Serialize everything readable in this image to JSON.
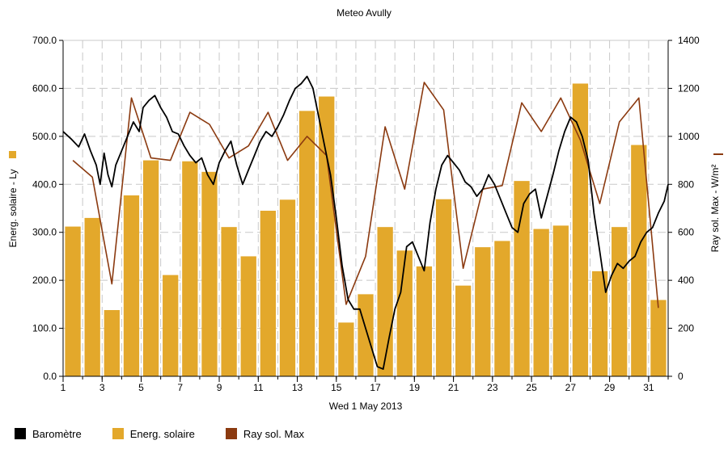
{
  "chart_data": {
    "type": "bar+line",
    "title": "Meteo  Avully",
    "xlabel": "Wed 1 May 2013",
    "ylabel_left": "Energ. solaire - Ly",
    "ylabel_right": "Ray sol. Max - W/m²",
    "ylim_left": [
      0,
      700
    ],
    "ylim_right": [
      0,
      1400
    ],
    "xlim": [
      1,
      32
    ],
    "y_ticks_left": [
      "0.0",
      "100.0",
      "200.0",
      "300.0",
      "400.0",
      "500.0",
      "600.0",
      "700.0"
    ],
    "y_ticks_right": [
      "0",
      "200",
      "400",
      "600",
      "800",
      "1000",
      "1200",
      "1400"
    ],
    "x_ticks": [
      "1",
      "3",
      "5",
      "7",
      "9",
      "11",
      "13",
      "15",
      "17",
      "19",
      "21",
      "23",
      "25",
      "27",
      "29",
      "31"
    ],
    "grid": true,
    "legend_position": "bottom",
    "series": [
      {
        "name": "Baromètre",
        "kind": "line",
        "axis": "left",
        "color": "#000000",
        "points": [
          [
            1.0,
            510
          ],
          [
            1.4,
            495
          ],
          [
            1.8,
            478
          ],
          [
            2.1,
            505
          ],
          [
            2.4,
            470
          ],
          [
            2.7,
            440
          ],
          [
            2.9,
            400
          ],
          [
            3.1,
            465
          ],
          [
            3.3,
            420
          ],
          [
            3.5,
            395
          ],
          [
            3.7,
            440
          ],
          [
            4.0,
            470
          ],
          [
            4.3,
            500
          ],
          [
            4.6,
            530
          ],
          [
            4.9,
            510
          ],
          [
            5.1,
            560
          ],
          [
            5.4,
            575
          ],
          [
            5.7,
            585
          ],
          [
            6.0,
            560
          ],
          [
            6.3,
            540
          ],
          [
            6.6,
            510
          ],
          [
            6.9,
            505
          ],
          [
            7.2,
            480
          ],
          [
            7.5,
            460
          ],
          [
            7.8,
            445
          ],
          [
            8.1,
            455
          ],
          [
            8.4,
            420
          ],
          [
            8.7,
            400
          ],
          [
            9.0,
            445
          ],
          [
            9.3,
            470
          ],
          [
            9.6,
            490
          ],
          [
            9.9,
            440
          ],
          [
            10.2,
            400
          ],
          [
            10.5,
            430
          ],
          [
            10.8,
            460
          ],
          [
            11.1,
            490
          ],
          [
            11.4,
            510
          ],
          [
            11.7,
            500
          ],
          [
            12.0,
            520
          ],
          [
            12.3,
            545
          ],
          [
            12.6,
            575
          ],
          [
            12.9,
            600
          ],
          [
            13.2,
            610
          ],
          [
            13.5,
            625
          ],
          [
            13.8,
            600
          ],
          [
            14.1,
            540
          ],
          [
            14.4,
            480
          ],
          [
            14.7,
            420
          ],
          [
            15.0,
            330
          ],
          [
            15.3,
            230
          ],
          [
            15.6,
            160
          ],
          [
            15.9,
            140
          ],
          [
            16.2,
            140
          ],
          [
            16.5,
            100
          ],
          [
            16.8,
            60
          ],
          [
            17.1,
            20
          ],
          [
            17.4,
            15
          ],
          [
            17.7,
            80
          ],
          [
            18.0,
            140
          ],
          [
            18.3,
            175
          ],
          [
            18.6,
            270
          ],
          [
            18.9,
            280
          ],
          [
            19.2,
            250
          ],
          [
            19.5,
            220
          ],
          [
            19.8,
            320
          ],
          [
            20.1,
            390
          ],
          [
            20.4,
            440
          ],
          [
            20.7,
            460
          ],
          [
            21.0,
            445
          ],
          [
            21.3,
            430
          ],
          [
            21.6,
            405
          ],
          [
            21.9,
            395
          ],
          [
            22.2,
            375
          ],
          [
            22.5,
            390
          ],
          [
            22.8,
            420
          ],
          [
            23.1,
            400
          ],
          [
            23.4,
            370
          ],
          [
            23.7,
            340
          ],
          [
            24.0,
            310
          ],
          [
            24.3,
            300
          ],
          [
            24.6,
            360
          ],
          [
            24.9,
            380
          ],
          [
            25.2,
            390
          ],
          [
            25.5,
            330
          ],
          [
            25.8,
            375
          ],
          [
            26.1,
            420
          ],
          [
            26.4,
            470
          ],
          [
            26.7,
            510
          ],
          [
            27.0,
            540
          ],
          [
            27.3,
            530
          ],
          [
            27.6,
            500
          ],
          [
            27.9,
            450
          ],
          [
            28.2,
            340
          ],
          [
            28.5,
            260
          ],
          [
            28.8,
            175
          ],
          [
            29.1,
            210
          ],
          [
            29.4,
            235
          ],
          [
            29.7,
            225
          ],
          [
            30.0,
            240
          ],
          [
            30.3,
            250
          ],
          [
            30.6,
            280
          ],
          [
            30.9,
            300
          ],
          [
            31.2,
            310
          ],
          [
            31.5,
            340
          ],
          [
            31.8,
            365
          ],
          [
            32.0,
            400
          ]
        ]
      },
      {
        "name": "Energ. solaire",
        "kind": "bar",
        "axis": "left",
        "color": "#E3A82B",
        "x": [
          1,
          2,
          3,
          4,
          5,
          6,
          7,
          8,
          9,
          10,
          11,
          12,
          13,
          14,
          15,
          16,
          17,
          18,
          19,
          20,
          21,
          22,
          23,
          24,
          25,
          26,
          27,
          28,
          29,
          30,
          31
        ],
        "values": [
          312,
          330,
          138,
          377,
          450,
          211,
          448,
          426,
          311,
          250,
          345,
          368,
          553,
          583,
          112,
          171,
          311,
          262,
          229,
          369,
          189,
          269,
          282,
          407,
          307,
          314,
          610,
          219,
          311,
          482,
          159
        ]
      },
      {
        "name": "Ray sol. Max",
        "kind": "line",
        "axis": "right",
        "color": "#8B3A10",
        "x": [
          1.5,
          2.5,
          3.5,
          4.5,
          5.5,
          6.5,
          7.5,
          8.5,
          9.5,
          10.5,
          11.5,
          12.5,
          13.5,
          14.5,
          15.5,
          16.5,
          17.5,
          18.5,
          19.5,
          20.5,
          21.5,
          22.5,
          23.5,
          24.5,
          25.5,
          26.5,
          27.5,
          28.5,
          29.5,
          30.5,
          31.5
        ],
        "values": [
          900,
          830,
          385,
          1160,
          910,
          900,
          1100,
          1050,
          910,
          960,
          1100,
          900,
          1000,
          920,
          300,
          500,
          1040,
          780,
          1225,
          1110,
          450,
          780,
          795,
          1140,
          1020,
          1160,
          985,
          720,
          1060,
          1160,
          285
        ]
      }
    ]
  }
}
